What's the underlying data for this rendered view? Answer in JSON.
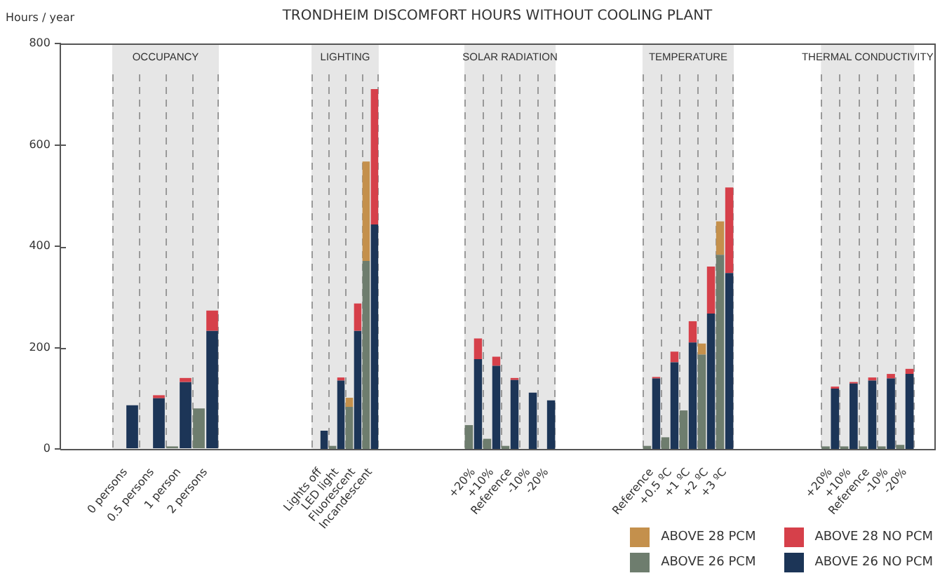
{
  "chart_data": [
    {
      "type": "bar",
      "title": "OCCUPANCY",
      "annotations": [
        "TRONDHEIM DISCOMFORT HOURS WITHOUT COOLING PLANT"
      ],
      "ylabel": "Hours / year",
      "categories": [
        "0 persons",
        null,
        "0.5 persons",
        null,
        "1 person",
        null,
        "2 persons",
        null
      ],
      "stacked": true,
      "grid": "x",
      "ylim": [
        0,
        800
      ],
      "yticks": [
        0,
        200,
        400,
        600,
        800
      ],
      "series": [
        {
          "color": "#6e7d6e",
          "values": [
            0,
            null,
            0,
            null,
            5,
            null,
            80,
            null
          ]
        },
        {
          "color": "#c4904c",
          "values": [
            0,
            null,
            0,
            null,
            0,
            null,
            0,
            null
          ]
        },
        {
          "color": "#1c3557",
          "values": [
            null,
            86,
            null,
            100,
            null,
            132,
            null,
            233
          ]
        },
        {
          "color": "#d6404a",
          "values": [
            null,
            0,
            null,
            6,
            null,
            8,
            null,
            40
          ]
        }
      ]
    },
    {
      "type": "bar",
      "title": "LIGHTING",
      "categories": [
        "Lights off",
        null,
        "LED light",
        null,
        "Fluorescent",
        null,
        "Incandescent",
        null
      ],
      "stacked": true,
      "grid": "x",
      "ylim": [
        0,
        800
      ],
      "tick_labels": "x",
      "series": [
        {
          "color": "#6e7d6e",
          "values": [
            0,
            null,
            6,
            null,
            83,
            null,
            371,
            null
          ]
        },
        {
          "color": "#c4904c",
          "values": [
            0,
            null,
            0,
            null,
            18,
            null,
            196,
            null
          ]
        },
        {
          "color": "#1c3557",
          "values": [
            null,
            36,
            null,
            135,
            null,
            233,
            null,
            443
          ]
        },
        {
          "color": "#d6404a",
          "values": [
            null,
            0,
            null,
            6,
            null,
            54,
            null,
            267
          ]
        }
      ]
    },
    {
      "type": "bar",
      "title": "SOLAR RADIATION",
      "categories": [
        "+20%",
        null,
        "+10%",
        null,
        "Reference",
        null,
        "-10%",
        null,
        "-20%",
        null
      ],
      "stacked": true,
      "grid": "x",
      "ylim": [
        0,
        800
      ],
      "tick_labels": "x",
      "series": [
        {
          "color": "#6e7d6e",
          "values": [
            47,
            null,
            20,
            null,
            6,
            null,
            0,
            null,
            0,
            null
          ]
        },
        {
          "color": "#c4904c",
          "values": [
            0,
            null,
            0,
            null,
            0,
            null,
            0,
            null,
            0,
            null
          ]
        },
        {
          "color": "#1c3557",
          "values": [
            null,
            177,
            null,
            164,
            null,
            136,
            null,
            111,
            null,
            96
          ]
        },
        {
          "color": "#d6404a",
          "values": [
            null,
            41,
            null,
            18,
            null,
            4,
            null,
            0,
            null,
            0
          ]
        }
      ]
    },
    {
      "type": "bar",
      "title": "TEMPERATURE",
      "categories": [
        "Reference",
        null,
        "+0.5 ºC",
        null,
        "+1 ºC",
        null,
        "+2 ºC",
        null,
        "+3 ºC",
        null
      ],
      "stacked": true,
      "grid": "x",
      "ylim": [
        0,
        800
      ],
      "tick_labels": "x",
      "series": [
        {
          "color": "#6e7d6e",
          "values": [
            6,
            null,
            23,
            null,
            76,
            null,
            186,
            null,
            383,
            null
          ]
        },
        {
          "color": "#c4904c",
          "values": [
            0,
            null,
            0,
            null,
            0,
            null,
            22,
            null,
            66,
            null
          ]
        },
        {
          "color": "#1c3557",
          "values": [
            null,
            139,
            null,
            171,
            null,
            210,
            null,
            267,
            null,
            347
          ]
        },
        {
          "color": "#d6404a",
          "values": [
            null,
            3,
            null,
            21,
            null,
            42,
            null,
            93,
            null,
            169
          ]
        }
      ]
    },
    {
      "type": "bar",
      "title": "THERMAL CONDUCTIVITY",
      "categories": [
        "+20%",
        null,
        "+10%",
        null,
        "Reference",
        null,
        "-10%",
        null,
        "-20%",
        null
      ],
      "stacked": true,
      "grid": "x",
      "ylim": [
        0,
        800
      ],
      "tick_labels": "x",
      "legend": "bottom left",
      "series": [
        {
          "name": "ABOVE 26 PCM",
          "color": "#6e7d6e",
          "values": [
            5,
            null,
            5,
            null,
            5,
            null,
            5,
            null,
            8,
            null
          ]
        },
        {
          "name": "ABOVE 28 PCM",
          "color": "#c4904c",
          "values": [
            0,
            null,
            0,
            null,
            0,
            null,
            0,
            null,
            0,
            null
          ]
        },
        {
          "name": "ABOVE 26 NO PCM",
          "color": "#1c3557",
          "values": [
            null,
            119,
            null,
            129,
            null,
            135,
            null,
            139,
            null,
            148
          ]
        },
        {
          "name": "ABOVE 28 NO PCM",
          "color": "#d6404a",
          "values": [
            null,
            4,
            null,
            3,
            null,
            6,
            null,
            9,
            null,
            10
          ]
        }
      ]
    }
  ]
}
